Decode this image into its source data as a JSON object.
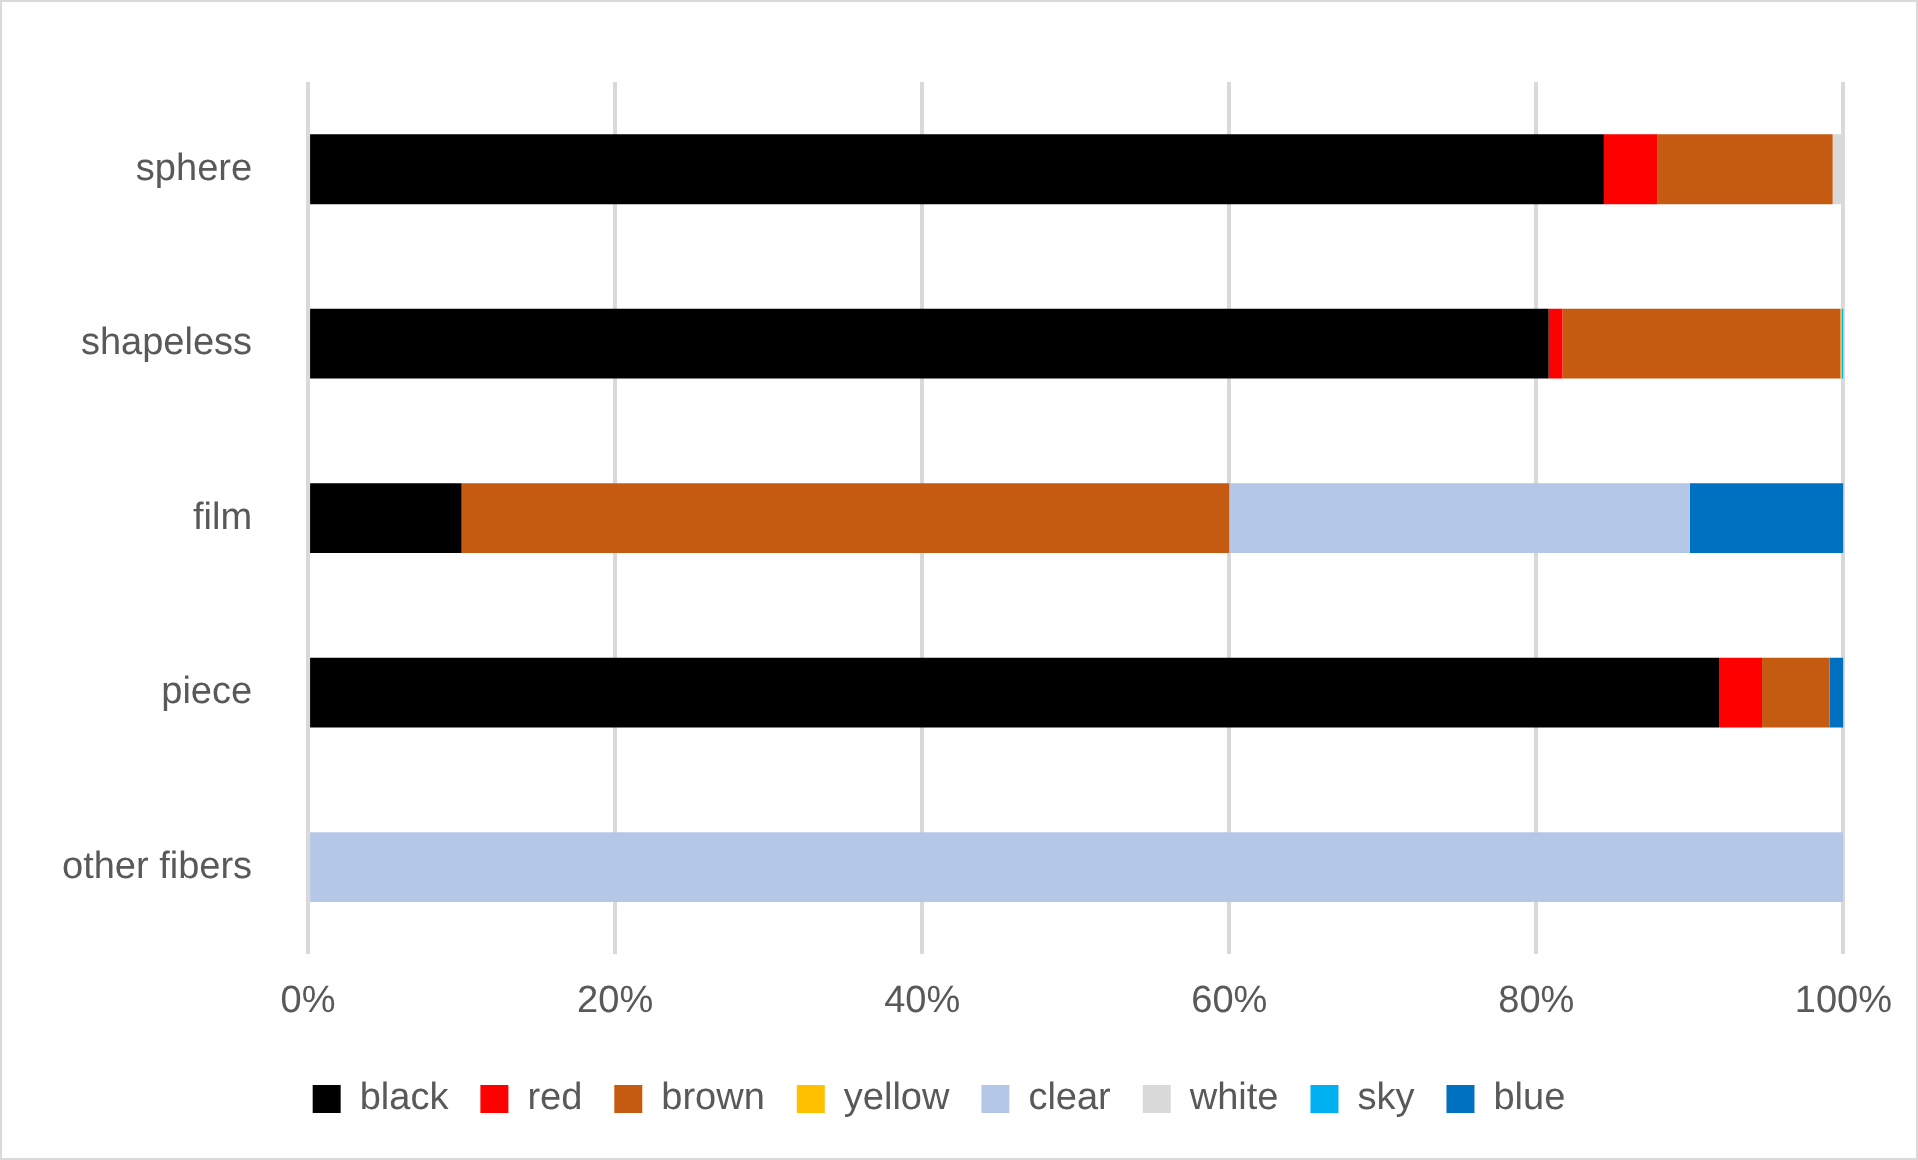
{
  "chart_data": {
    "type": "bar",
    "orientation": "horizontal",
    "stacked": true,
    "categories": [
      "sphere",
      "shapeless",
      "film",
      "piece",
      "other fibers"
    ],
    "series": [
      {
        "name": "black",
        "color": "#000000",
        "values": [
          84.4,
          80.8,
          10,
          91.9,
          0
        ]
      },
      {
        "name": "red",
        "color": "#ff0000",
        "values": [
          3.5,
          0.9,
          0,
          2.8,
          0
        ]
      },
      {
        "name": "brown",
        "color": "#c55a11",
        "values": [
          11.4,
          18.1,
          50,
          4.4,
          0
        ]
      },
      {
        "name": "yellow",
        "color": "#ffc000",
        "values": [
          0,
          0.1,
          0,
          0,
          0
        ]
      },
      {
        "name": "clear",
        "color": "#b4c7e7",
        "values": [
          0,
          0,
          30,
          0,
          100
        ]
      },
      {
        "name": "white",
        "color": "#d9d9d9",
        "values": [
          0.7,
          0,
          0,
          0,
          0
        ]
      },
      {
        "name": "sky",
        "color": "#00b0f0",
        "values": [
          0,
          0.1,
          0,
          0,
          0
        ]
      },
      {
        "name": "blue",
        "color": "#0070c0",
        "values": [
          0,
          0,
          10,
          0.9,
          0
        ]
      }
    ],
    "xlim": [
      0,
      100
    ],
    "xticks": [
      {
        "value": 0,
        "label": "0%"
      },
      {
        "value": 20,
        "label": "20%"
      },
      {
        "value": 40,
        "label": "40%"
      },
      {
        "value": 60,
        "label": "60%"
      },
      {
        "value": 80,
        "label": "80%"
      },
      {
        "value": 100,
        "label": "100%"
      }
    ],
    "grid": "x",
    "legend": "bottom"
  }
}
